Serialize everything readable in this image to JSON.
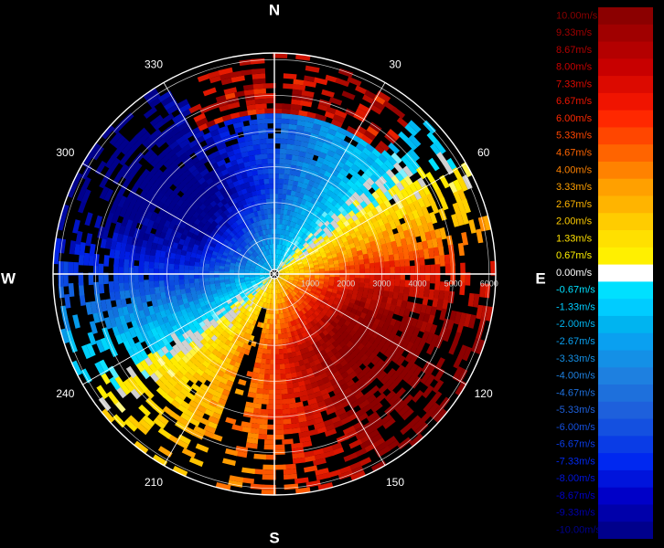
{
  "chart_data": {
    "type": "heatmap",
    "projection": "polar",
    "compass": {
      "north": "N",
      "east": "E",
      "south": "S",
      "west": "W"
    },
    "azimuth_ticks": [
      "30",
      "60",
      "120",
      "150",
      "210",
      "240",
      "300",
      "330"
    ],
    "azimuth_tick_degrees": [
      30,
      60,
      120,
      150,
      210,
      240,
      300,
      330
    ],
    "range_ticks": [
      "1000",
      "2000",
      "3000",
      "4000",
      "5000",
      "6000"
    ],
    "range_tick_values": [
      1000,
      2000,
      3000,
      4000,
      5000,
      6000
    ],
    "max_range": 6000,
    "grid": true,
    "legend_position": "right",
    "velocity_unit": "m/s",
    "legend": {
      "labels": [
        "10.00m/s",
        "9.33m/s",
        "8.67m/s",
        "8.00m/s",
        "7.33m/s",
        "6.67m/s",
        "6.00m/s",
        "5.33m/s",
        "4.67m/s",
        "4.00m/s",
        "3.33m/s",
        "2.67m/s",
        "2.00m/s",
        "1.33m/s",
        "0.67m/s",
        "0.00m/s",
        "-0.67m/s",
        "-1.33m/s",
        "-2.00m/s",
        "-2.67m/s",
        "-3.33m/s",
        "-4.00m/s",
        "-4.67m/s",
        "-5.33m/s",
        "-6.00m/s",
        "-6.67m/s",
        "-7.33m/s",
        "-8.00m/s",
        "-8.67m/s",
        "-9.33m/s",
        "-10.00m/s"
      ],
      "colors": [
        "#8b0000",
        "#a00000",
        "#b40000",
        "#c80000",
        "#dc0a00",
        "#f01400",
        "#ff2800",
        "#ff4600",
        "#ff6400",
        "#ff8200",
        "#ffa000",
        "#ffb400",
        "#ffcc00",
        "#ffe000",
        "#fff000",
        "#ffffff",
        "#00e0ff",
        "#00ccff",
        "#00b4f0",
        "#0aa0f0",
        "#1490e6",
        "#1e80e0",
        "#1e70dc",
        "#1e60dc",
        "#1450e0",
        "#0a3ce6",
        "#0028f0",
        "#0014dc",
        "#0000c8",
        "#0000aa",
        "#00008c"
      ]
    }
  }
}
